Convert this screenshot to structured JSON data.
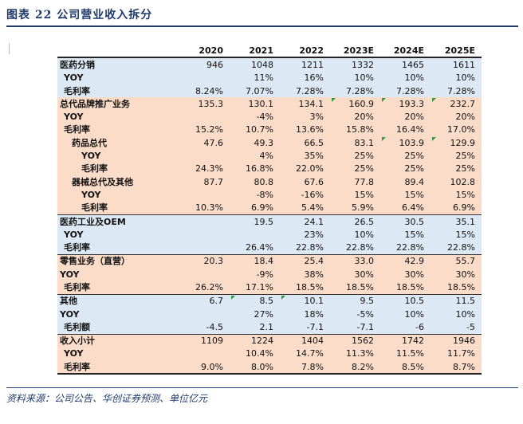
{
  "header": {
    "title": "图表 22  公司营业收入拆分"
  },
  "table": {
    "columns": [
      "",
      "2020",
      "2021",
      "2022",
      "2023E",
      "2024E",
      "2025E"
    ],
    "rows": [
      {
        "label": "医药分销",
        "values": [
          "946",
          "1048",
          "1211",
          "1332",
          "1465",
          "1611"
        ],
        "bg": "blue",
        "indent": 0,
        "bold": true
      },
      {
        "label": "YOY",
        "values": [
          "",
          "11%",
          "16%",
          "10%",
          "10%",
          "10%"
        ],
        "bg": "blue",
        "indent": 1,
        "bold": true
      },
      {
        "label": "毛利率",
        "values": [
          "8.24%",
          "7.07%",
          "7.28%",
          "7.28%",
          "7.28%",
          "7.28%"
        ],
        "bg": "blue",
        "indent": 1,
        "bold": true
      },
      {
        "label": "总代品牌推广业务",
        "values": [
          "135.3",
          "130.1",
          "134.1",
          "160.9",
          "193.3",
          "232.7"
        ],
        "bg": "peach",
        "indent": 0,
        "bold": true,
        "flags": [
          3,
          4,
          5
        ]
      },
      {
        "label": "YOY",
        "values": [
          "",
          "-4%",
          "3%",
          "20%",
          "20%",
          "20%"
        ],
        "bg": "peach",
        "indent": 1,
        "bold": true
      },
      {
        "label": "毛利率",
        "values": [
          "15.2%",
          "10.7%",
          "13.6%",
          "15.8%",
          "16.4%",
          "17.0%"
        ],
        "bg": "peach",
        "indent": 1,
        "bold": true
      },
      {
        "label": "药品总代",
        "values": [
          "47.6",
          "49.3",
          "66.5",
          "83.1",
          "103.9",
          "129.9"
        ],
        "bg": "peach",
        "indent": 2,
        "bold": true,
        "flags": [
          4,
          5
        ]
      },
      {
        "label": "YOY",
        "values": [
          "",
          "4%",
          "35%",
          "25%",
          "25%",
          "25%"
        ],
        "bg": "peach",
        "indent": 3,
        "bold": true
      },
      {
        "label": "毛利率",
        "values": [
          "24.3%",
          "16.8%",
          "22.0%",
          "25%",
          "25%",
          "25%"
        ],
        "bg": "peach",
        "indent": 3,
        "bold": true
      },
      {
        "label": "器械总代及其他",
        "values": [
          "87.7",
          "80.8",
          "67.6",
          "77.8",
          "89.4",
          "102.8"
        ],
        "bg": "peach",
        "indent": 2,
        "bold": true
      },
      {
        "label": "YOY",
        "values": [
          "",
          "-8%",
          "-16%",
          "15%",
          "15%",
          "15%"
        ],
        "bg": "peach",
        "indent": 3,
        "bold": true
      },
      {
        "label": "毛利率",
        "values": [
          "10.3%",
          "6.9%",
          "5.4%",
          "5.9%",
          "6.4%",
          "6.9%"
        ],
        "bg": "peach",
        "indent": 3,
        "bold": true
      },
      {
        "label": "医药工业及OEM",
        "values": [
          "",
          "19.5",
          "24.1",
          "26.5",
          "30.5",
          "35.1"
        ],
        "bg": "blue",
        "indent": 0,
        "bold": true,
        "sep": true
      },
      {
        "label": "YOY",
        "values": [
          "",
          "",
          "23%",
          "10%",
          "15%",
          "15%"
        ],
        "bg": "blue",
        "indent": 1,
        "bold": true
      },
      {
        "label": "毛利率",
        "values": [
          "",
          "26.4%",
          "22.8%",
          "22.8%",
          "22.8%",
          "22.8%"
        ],
        "bg": "blue",
        "indent": 1,
        "bold": true
      },
      {
        "label": "零售业务（直营）",
        "values": [
          "20.3",
          "18.4",
          "25.4",
          "33.0",
          "42.9",
          "55.7"
        ],
        "bg": "peach",
        "indent": 0,
        "bold": true,
        "sep": true
      },
      {
        "label": "YOY",
        "values": [
          "",
          "-9%",
          "38%",
          "30%",
          "30%",
          "30%"
        ],
        "bg": "peach",
        "indent": 0,
        "bold": true
      },
      {
        "label": "毛利率",
        "values": [
          "26.2%",
          "17.1%",
          "18.5%",
          "18.5%",
          "18.5%",
          "18.5%"
        ],
        "bg": "peach",
        "indent": 1,
        "bold": true
      },
      {
        "label": "其他",
        "values": [
          "6.7",
          "8.5",
          "10.1",
          "9.5",
          "10.5",
          "11.5"
        ],
        "bg": "blue",
        "indent": 0,
        "bold": true,
        "sep": true,
        "flags": [
          1,
          2
        ]
      },
      {
        "label": "YOY",
        "values": [
          "",
          "27%",
          "18%",
          "-5%",
          "10%",
          "10%"
        ],
        "bg": "blue",
        "indent": 0,
        "bold": true
      },
      {
        "label": "毛利额",
        "values": [
          "-4.5",
          "2.1",
          "-7.1",
          "-7.1",
          "-6",
          "-5"
        ],
        "bg": "blue",
        "indent": 1,
        "bold": true
      },
      {
        "label": "收入小计",
        "values": [
          "1109",
          "1224",
          "1404",
          "1562",
          "1742",
          "1946"
        ],
        "bg": "peach",
        "indent": 0,
        "bold": true,
        "sep": true
      },
      {
        "label": "YOY",
        "values": [
          "",
          "10.4%",
          "14.7%",
          "11.3%",
          "11.5%",
          "11.7%"
        ],
        "bg": "peach",
        "indent": 1,
        "bold": true
      },
      {
        "label": "毛利率",
        "values": [
          "9.0%",
          "8.0%",
          "7.8%",
          "8.2%",
          "8.5%",
          "8.7%"
        ],
        "bg": "peach",
        "indent": 1,
        "bold": true,
        "last": true
      }
    ]
  },
  "footer": {
    "source": "资料来源：公司公告、华创证券预测、单位亿元"
  },
  "colors": {
    "title": "#1f3a6a",
    "blue_row": "#dce9f5",
    "peach_row": "#fbdcc9",
    "flag": "#2e9b3f"
  }
}
